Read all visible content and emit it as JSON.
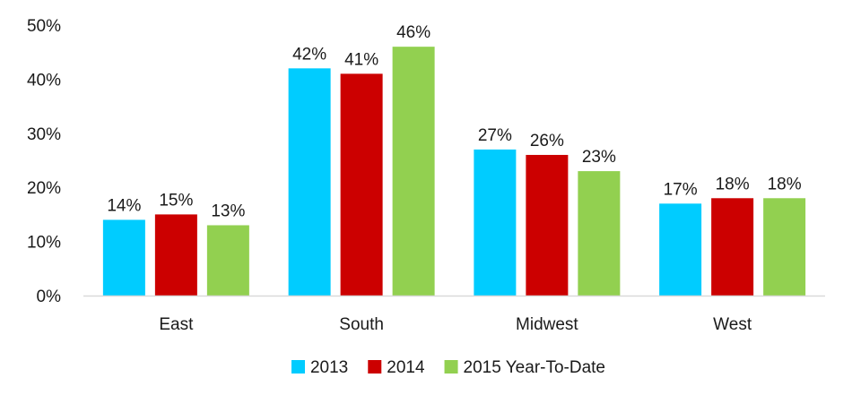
{
  "chart_data": {
    "type": "bar",
    "title": "",
    "xlabel": "",
    "ylabel": "",
    "ylim": [
      0,
      50
    ],
    "yticks": [
      "0%",
      "10%",
      "20%",
      "30%",
      "40%",
      "50%"
    ],
    "ytick_values": [
      0,
      10,
      20,
      30,
      40,
      50
    ],
    "value_suffix": "%",
    "categories": [
      "East",
      "South",
      "Midwest",
      "West"
    ],
    "series": [
      {
        "name": "2013",
        "color": "#00CCFF",
        "values": [
          14,
          42,
          27,
          17
        ]
      },
      {
        "name": "2014",
        "color": "#CC0000",
        "values": [
          15,
          41,
          26,
          18
        ]
      },
      {
        "name": "2015 Year-To-Date",
        "color": "#92D050",
        "values": [
          13,
          46,
          23,
          18
        ]
      }
    ],
    "grid": false,
    "legend_position": "bottom"
  }
}
